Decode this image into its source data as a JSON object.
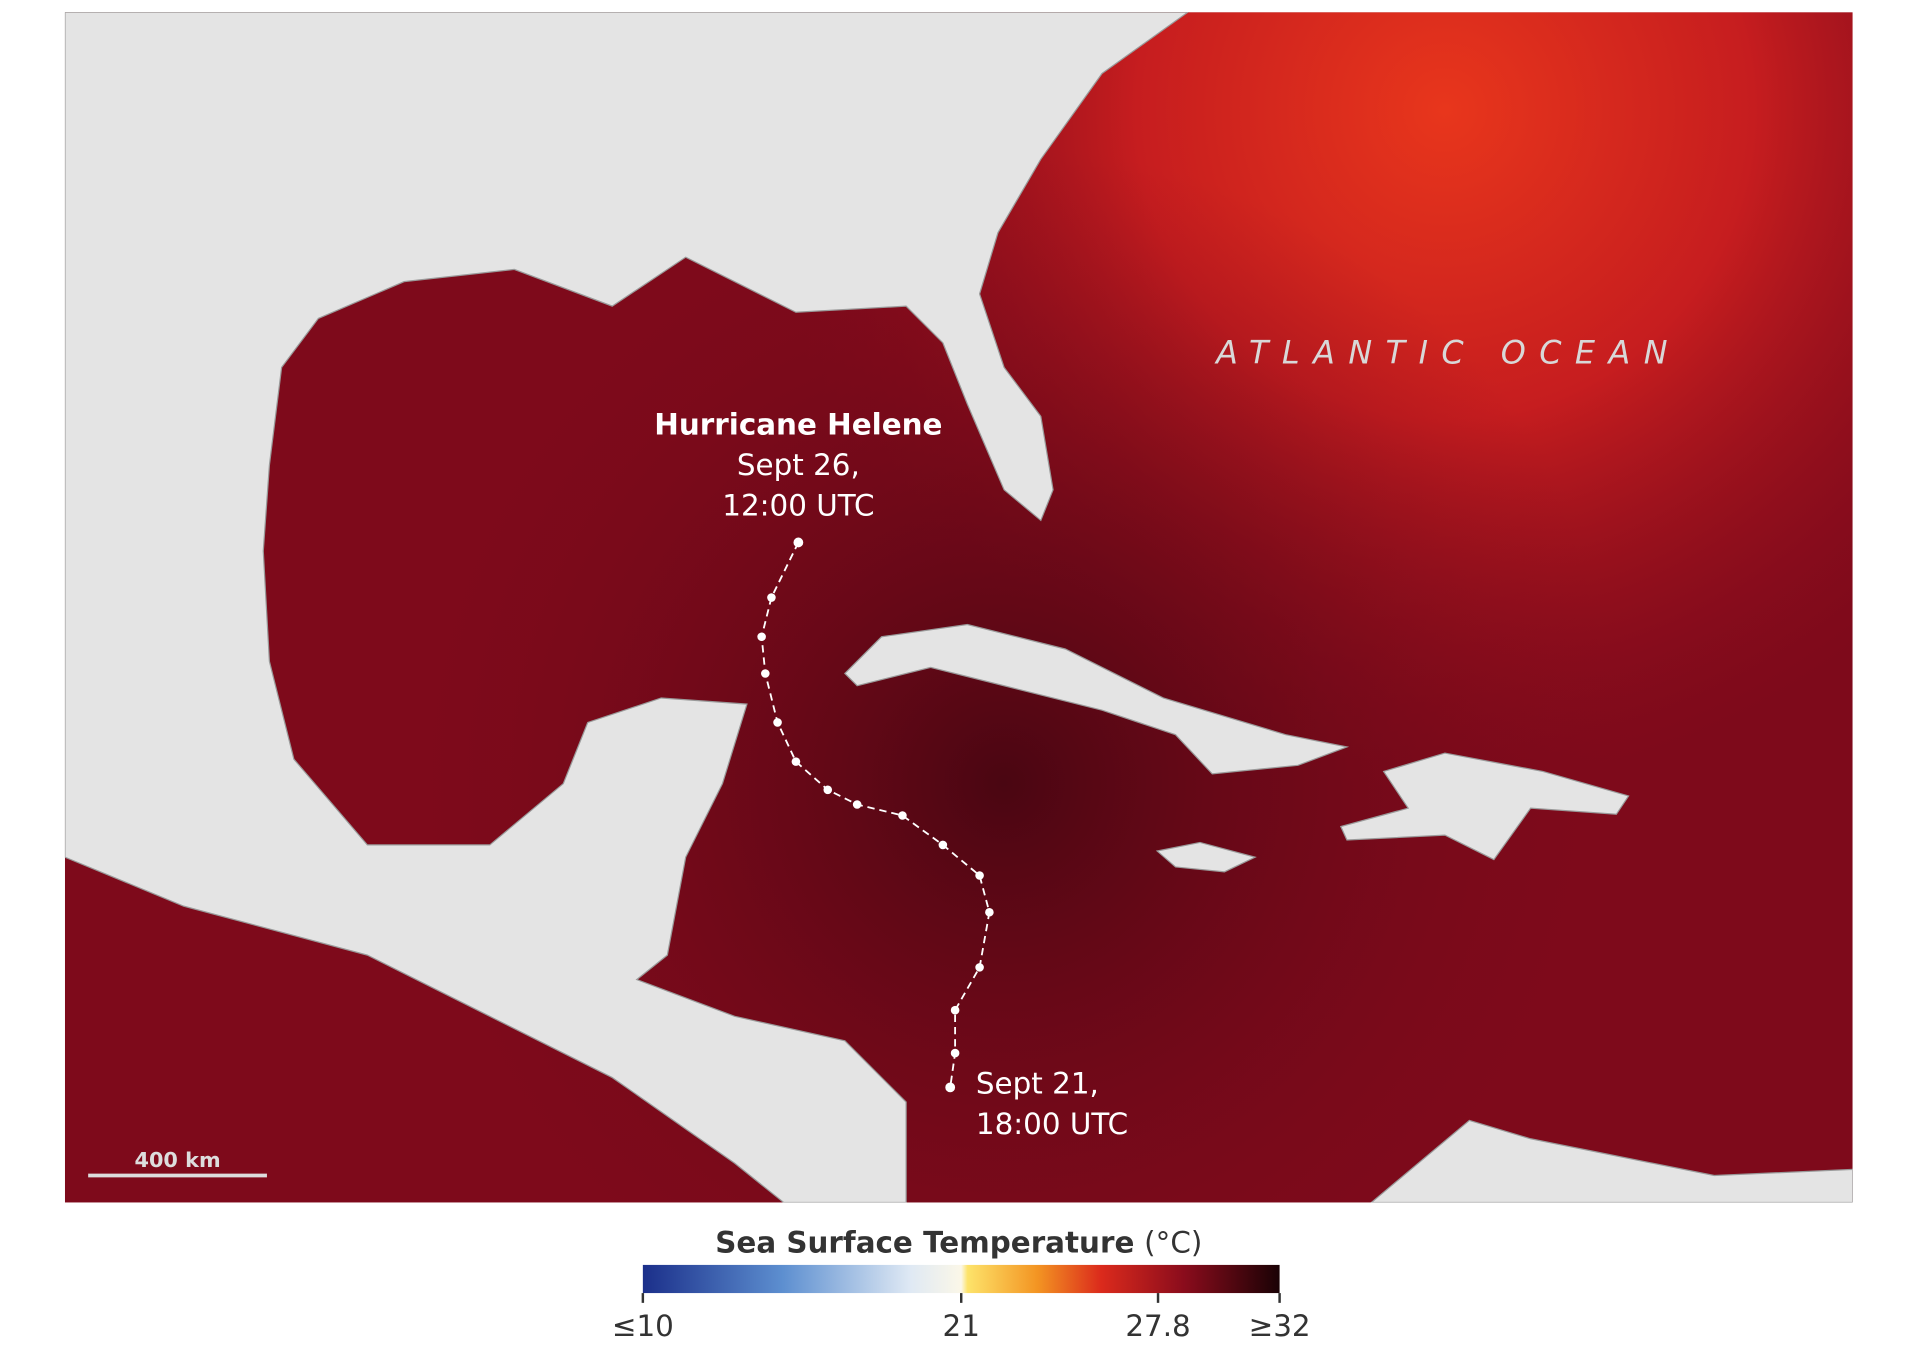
{
  "map": {
    "ocean_label": "ATLANTIC OCEAN",
    "track": {
      "end_title": "Hurricane Helene",
      "end_date": "Sept 26,",
      "end_time": "12:00 UTC",
      "start_date": "Sept 21,",
      "start_time": "18:00 UTC"
    },
    "scale_bar": "400 km"
  },
  "legend": {
    "title": "Sea Surface Temperature",
    "unit": "(°C)",
    "range": [
      10,
      32
    ],
    "ticks": [
      {
        "value": 10,
        "label": "≤10"
      },
      21,
      27.8,
      {
        "value": 32,
        "label": "≥32"
      }
    ]
  }
}
